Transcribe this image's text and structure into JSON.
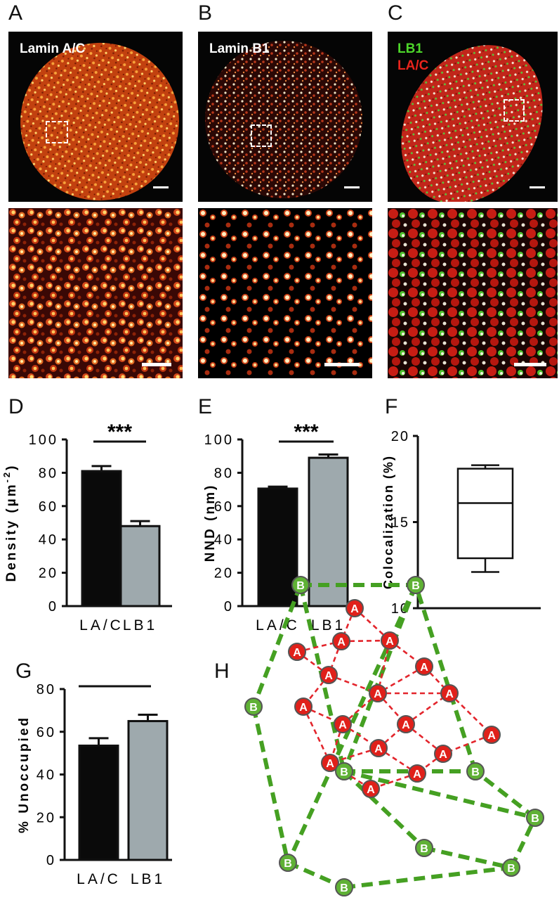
{
  "panels": {
    "A": {
      "letter": "A",
      "label": "Lamin A/C",
      "label_color": "#ffffff"
    },
    "B": {
      "letter": "B",
      "label": "Lamin B1",
      "label_color": "#ffffff"
    },
    "C": {
      "letter": "C",
      "label_lines": [
        {
          "text": "LB1",
          "color": "#4dd62a"
        },
        {
          "text": "LA/C",
          "color": "#e8241c"
        }
      ]
    },
    "D": {
      "letter": "D"
    },
    "E": {
      "letter": "E"
    },
    "F": {
      "letter": "F"
    },
    "G": {
      "letter": "G"
    },
    "H": {
      "letter": "H"
    }
  },
  "colors": {
    "lac_bar": "#0a0a0a",
    "lb1_bar": "#9ea9ad",
    "network_green": "#3f9a1e",
    "node_red": "#e0201a",
    "node_green": "#5fb135"
  },
  "chart_data": [
    {
      "id": "D",
      "type": "bar",
      "categories": [
        "LA/C",
        "LB1"
      ],
      "values": [
        81,
        48
      ],
      "errors": [
        3,
        3
      ],
      "ylabel": "Density (µm",
      "ylabel_sup": "-2",
      "ylabel_close": ")",
      "ylim": [
        0,
        100
      ],
      "yticks": [
        0,
        20,
        40,
        60,
        80,
        100
      ],
      "significance": "***"
    },
    {
      "id": "E",
      "type": "bar",
      "categories": [
        "LA/C",
        "LB1"
      ],
      "values": [
        70.5,
        89
      ],
      "errors": [
        1.2,
        2
      ],
      "ylabel": "NND (nm)",
      "ylim": [
        0,
        100
      ],
      "yticks": [
        0,
        20,
        40,
        60,
        80,
        100
      ],
      "significance": "***"
    },
    {
      "id": "F",
      "type": "box",
      "ylabel": "Colocalization (%)",
      "ylim": [
        10,
        20
      ],
      "yticks": [
        10,
        15,
        20
      ],
      "box": {
        "min": 12.1,
        "q1": 12.9,
        "median": 16.1,
        "q3": 18.1,
        "max": 18.3
      }
    },
    {
      "id": "G",
      "type": "bar",
      "categories": [
        "LA/C",
        "LB1"
      ],
      "values": [
        53.5,
        65
      ],
      "errors": [
        3.5,
        3
      ],
      "ylabel": "% Unoccupied",
      "ylim": [
        0,
        80
      ],
      "yticks": [
        0,
        20,
        40,
        60,
        80
      ],
      "significance": "*"
    }
  ],
  "network": {
    "a_label": "A",
    "b_label": "B"
  }
}
